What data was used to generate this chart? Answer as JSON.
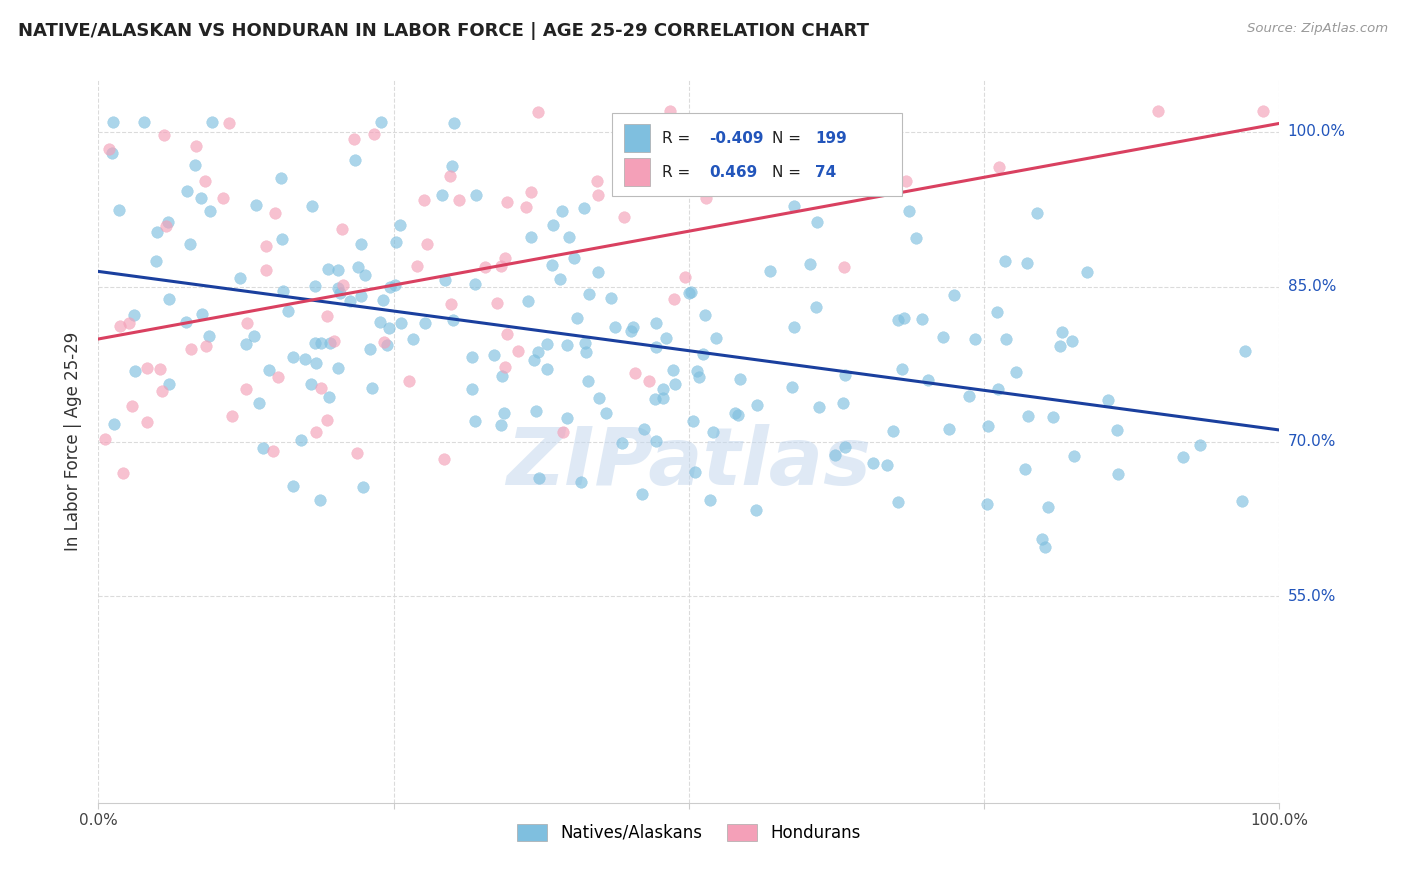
{
  "title": "NATIVE/ALASKAN VS HONDURAN IN LABOR FORCE | AGE 25-29 CORRELATION CHART",
  "source": "Source: ZipAtlas.com",
  "ylabel": "In Labor Force | Age 25-29",
  "ytick_labels": [
    "100.0%",
    "85.0%",
    "70.0%",
    "55.0%"
  ],
  "ytick_values": [
    1.0,
    0.85,
    0.7,
    0.55
  ],
  "xlim": [
    0.0,
    1.0
  ],
  "ylim": [
    0.35,
    1.05
  ],
  "legend_r_blue": "-0.409",
  "legend_n_blue": "199",
  "legend_r_pink": "0.469",
  "legend_n_pink": "74",
  "blue_color": "#7fbfdf",
  "pink_color": "#f4a0b8",
  "blue_line_color": "#1a3f9e",
  "pink_line_color": "#d94060",
  "watermark": "ZIPatlas",
  "background_color": "#ffffff",
  "grid_color": "#d8d8d8",
  "title_fontsize": 13,
  "axis_label_fontsize": 11,
  "legend_fontsize": 11
}
